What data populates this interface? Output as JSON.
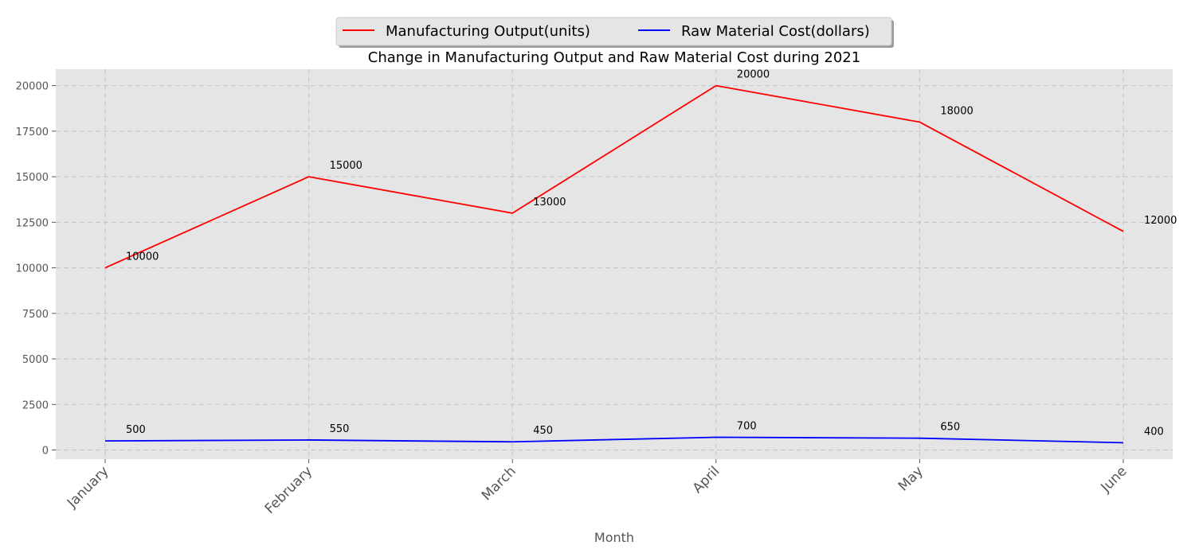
{
  "chart_data": {
    "type": "line",
    "title": "Change in Manufacturing Output and Raw Material Cost during 2021",
    "xlabel": "Month",
    "ylabel": "",
    "categories": [
      "January",
      "February",
      "March",
      "April",
      "May",
      "June"
    ],
    "ylim": [
      -500,
      20900
    ],
    "yticks": [
      0,
      2500,
      5000,
      7500,
      10000,
      12500,
      15000,
      17500,
      20000
    ],
    "grid": true,
    "legend_position": "top-center",
    "series": [
      {
        "name": "Manufacturing Output(units)",
        "color": "#ff0000",
        "values": [
          10000,
          15000,
          13000,
          20000,
          18000,
          12000
        ]
      },
      {
        "name": "Raw Material Cost(dollars)",
        "color": "#0000ff",
        "values": [
          500,
          550,
          450,
          700,
          650,
          400
        ]
      }
    ]
  }
}
